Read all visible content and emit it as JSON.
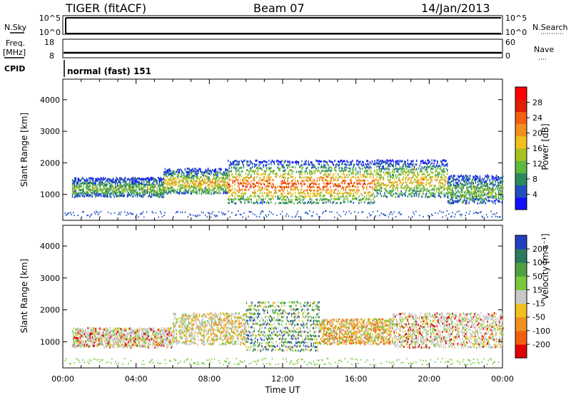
{
  "header": {
    "radar": "TIGER (fitACF)",
    "beam": "Beam 07",
    "date": "14/Jan/2013"
  },
  "strips": {
    "nsky": {
      "label": "N.Sky",
      "ticks": [
        "10^5",
        "10^0"
      ]
    },
    "nsearch": {
      "label": "N.Search",
      "ticks": [
        "10^5",
        "10^0"
      ]
    },
    "freq": {
      "label_line1": "Freq.",
      "label_line2": "[MHz]",
      "ticks": [
        "18",
        "8"
      ]
    },
    "nave": {
      "label": "Nave",
      "ticks": [
        "60",
        "0"
      ]
    },
    "cpid": {
      "label": "CPID",
      "value": "normal (fast) 151"
    }
  },
  "chart_data": [
    {
      "type": "heatmap",
      "name": "Power",
      "ylabel": "Slant Range [km]",
      "xlabel": "",
      "x_ticks": [
        "00:00",
        "04:00",
        "08:00",
        "12:00",
        "16:00",
        "20:00",
        "00:00"
      ],
      "y_ticks": [
        "1000",
        "2000",
        "3000",
        "4000"
      ],
      "xlim": [
        0,
        24
      ],
      "ylim": [
        180,
        4650
      ],
      "colorbar": {
        "label": "Power [dB]",
        "ticks": [
          "4",
          "8",
          "12",
          "16",
          "20",
          "24",
          "28"
        ],
        "range": [
          0,
          32
        ],
        "colors": [
          "#1010ff",
          "#2050c0",
          "#2a8a60",
          "#60b840",
          "#a8c020",
          "#f0c020",
          "#f09020",
          "#f06010",
          "#e02000",
          "#ff0000"
        ]
      },
      "bands": [
        {
          "t_start": 0.5,
          "t_end": 5.5,
          "range_low": 900,
          "range_high": 1500,
          "level": "low-mid"
        },
        {
          "t_start": 5.5,
          "t_end": 9.0,
          "range_low": 1000,
          "range_high": 1800,
          "level": "mid-high"
        },
        {
          "t_start": 9.0,
          "t_end": 17.0,
          "range_low": 700,
          "range_high": 2100,
          "level": "high"
        },
        {
          "t_start": 17.0,
          "t_end": 21.0,
          "range_low": 900,
          "range_high": 2100,
          "level": "mid-high"
        },
        {
          "t_start": 21.0,
          "t_end": 24.0,
          "range_low": 700,
          "range_high": 1600,
          "level": "low-mid"
        }
      ]
    },
    {
      "type": "heatmap",
      "name": "Velocity",
      "ylabel": "Slant Range [km]",
      "xlabel": "Time UT",
      "x_ticks": [
        "00:00",
        "04:00",
        "08:00",
        "12:00",
        "16:00",
        "20:00",
        "00:00"
      ],
      "y_ticks": [
        "1000",
        "2000",
        "3000",
        "4000"
      ],
      "xlim": [
        0,
        24
      ],
      "ylim": [
        180,
        4650
      ],
      "colorbar": {
        "label": "Velocity [m s⁻¹]",
        "ticks": [
          "200",
          "100",
          "50",
          "15",
          "-15",
          "-50",
          "-100",
          "-200"
        ],
        "colors": [
          "#2040c0",
          "#2a7a60",
          "#50a040",
          "#7ac840",
          "#c8c8c8",
          "#f0c020",
          "#f09020",
          "#f06010",
          "#e00000"
        ]
      },
      "bands": [
        {
          "t_start": 0.5,
          "t_end": 6.0,
          "range_low": 800,
          "range_high": 1400,
          "level": "near-zero"
        },
        {
          "t_start": 6.0,
          "t_end": 10.0,
          "range_low": 900,
          "range_high": 1900,
          "level": "slightly-negative"
        },
        {
          "t_start": 10.0,
          "t_end": 14.0,
          "range_low": 700,
          "range_high": 2300,
          "level": "positive"
        },
        {
          "t_start": 14.0,
          "t_end": 18.0,
          "range_low": 900,
          "range_high": 1700,
          "level": "negative"
        },
        {
          "t_start": 18.0,
          "t_end": 24.0,
          "range_low": 800,
          "range_high": 1900,
          "level": "near-zero"
        }
      ]
    }
  ]
}
